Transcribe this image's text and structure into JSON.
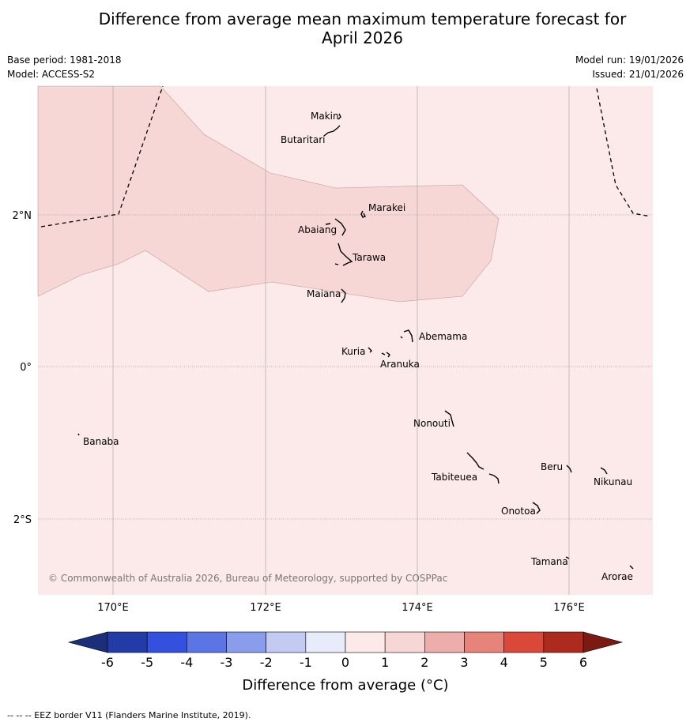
{
  "title_line1": "Difference from average mean maximum temperature forecast for",
  "title_line2": "April 2026",
  "meta": {
    "base_period": "Base period: 1981-2018",
    "model": "Model: ACCESS-S2",
    "model_run": "Model run: 19/01/2026",
    "issued": "Issued: 21/01/2026"
  },
  "map": {
    "lon_ticks": [
      "170°E",
      "172°E",
      "174°E",
      "176°E"
    ],
    "lat_ticks": [
      "2°N",
      "0°",
      "2°S"
    ],
    "copyright": "© Commonwealth of Australia 2026, Bureau of Meteorology, supported by COSPPac",
    "places": [
      "Makin",
      "Butaritari",
      "Marakei",
      "Abaiang",
      "Tarawa",
      "Maiana",
      "Abemama",
      "Kuria",
      "Aranuka",
      "Nonouti",
      "Banaba",
      "Beru",
      "Nikunau",
      "Tabiteuea",
      "Onotoa",
      "Tamana",
      "Arorae"
    ],
    "colors": {
      "band_0_1": "#fbeae9",
      "band_1_2": "#f6d7d5",
      "boundary_line": "#bf9d9b",
      "grid": "#a0a0a0"
    }
  },
  "legend": {
    "ticks": [
      "-6",
      "-5",
      "-4",
      "-3",
      "-2",
      "-1",
      "0",
      "1",
      "2",
      "3",
      "4",
      "5",
      "6"
    ],
    "label": "Difference from average (°C)",
    "colors": [
      "#233ba7",
      "#3450df",
      "#5b75e4",
      "#8a9ded",
      "#c4cbf3",
      "#e8ebfa",
      "#fbeae9",
      "#f6d7d5",
      "#edadaa",
      "#e6847b",
      "#d94838",
      "#ad2a1f"
    ],
    "low_color": "#1b2e7a",
    "high_color": "#7a1a12"
  },
  "footer": "-- -- -- EEZ border V11 (Flanders Marine Institute, 2019)."
}
